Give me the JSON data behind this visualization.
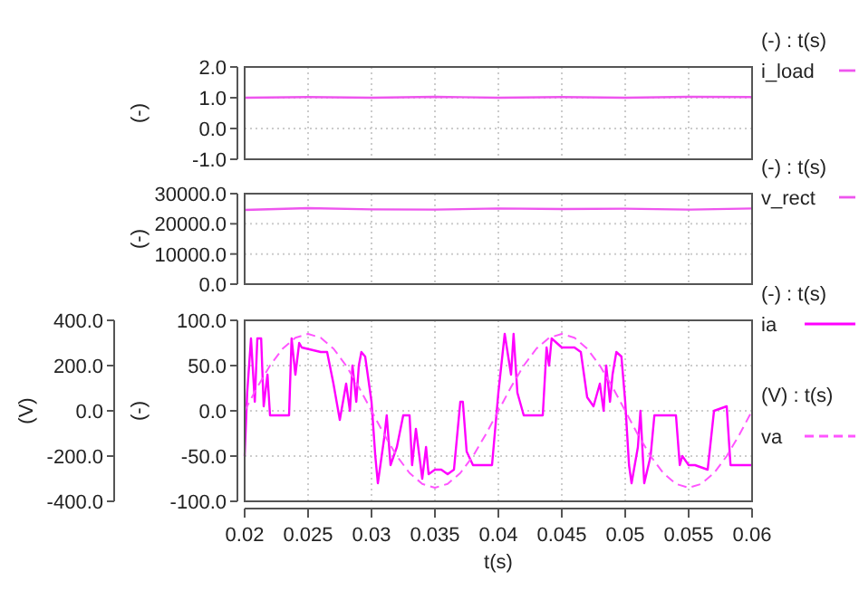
{
  "chart_data": [
    {
      "type": "line",
      "ylabel": "(-)",
      "legend_title": "(-) : t(s)",
      "legend": "right",
      "grid": true,
      "tick_labels": "y",
      "xlim": [
        0.02,
        0.06
      ],
      "xticks": [
        0.02,
        0.025,
        0.03,
        0.035,
        0.04,
        0.045,
        0.05,
        0.055,
        0.06
      ],
      "ylim": [
        -1,
        2
      ],
      "yticks": [
        {
          "value": -1,
          "label": "-1.0"
        },
        {
          "value": 0,
          "label": "0.0"
        },
        {
          "value": 1,
          "label": "1.0"
        },
        {
          "value": 2,
          "label": "2.0"
        }
      ],
      "series": [
        {
          "name": "i_load",
          "color": "#ee55ee",
          "x": [
            0.02,
            0.025,
            0.03,
            0.035,
            0.04,
            0.045,
            0.05,
            0.055,
            0.06
          ],
          "values": [
            1.0,
            1.02,
            1.0,
            1.03,
            1.0,
            1.02,
            1.0,
            1.03,
            1.02
          ]
        }
      ]
    },
    {
      "type": "line",
      "ylabel": "(-)",
      "legend_title": "(-) : t(s)",
      "legend": "right",
      "grid": true,
      "tick_labels": "y",
      "xlim": [
        0.02,
        0.06
      ],
      "xticks": [
        0.02,
        0.025,
        0.03,
        0.035,
        0.04,
        0.045,
        0.05,
        0.055,
        0.06
      ],
      "ylim": [
        0,
        30000
      ],
      "yticks": [
        {
          "value": 0,
          "label": "0.0"
        },
        {
          "value": 10000,
          "label": "10000.0"
        },
        {
          "value": 20000,
          "label": "20000.0"
        },
        {
          "value": 30000,
          "label": "30000.0"
        }
      ],
      "series": [
        {
          "name": "v_rect",
          "color": "#ee55ee",
          "x": [
            0.02,
            0.025,
            0.03,
            0.035,
            0.04,
            0.045,
            0.05,
            0.055,
            0.06
          ],
          "values": [
            24600,
            25200,
            24800,
            24700,
            25100,
            24900,
            25000,
            24700,
            25100
          ]
        }
      ]
    },
    {
      "type": "line",
      "xlabel": "t(s)",
      "ylabel": "(-)",
      "y2label": "(V)",
      "legend_title": "(-) : t(s)",
      "legend": "right",
      "grid": true,
      "annotations": [
        "(V) : t(s)"
      ],
      "xlim": [
        0.02,
        0.06
      ],
      "xticks": [
        0.02,
        0.025,
        0.03,
        0.035,
        0.04,
        0.045,
        0.05,
        0.055,
        0.06
      ],
      "ylim": [
        -100,
        100
      ],
      "yticks": [
        {
          "value": -100,
          "label": "-100.0"
        },
        {
          "value": -50,
          "label": "-50.0"
        },
        {
          "value": 0,
          "label": "0.0"
        },
        {
          "value": 50,
          "label": "50.0"
        },
        {
          "value": 100,
          "label": "100.0"
        }
      ],
      "y2lim": [
        -400,
        400
      ],
      "y2ticks": [
        {
          "value": -400,
          "label": "-400.0"
        },
        {
          "value": -200,
          "label": "-200.0"
        },
        {
          "value": 0,
          "label": "0.0"
        },
        {
          "value": 200,
          "label": "200.0"
        },
        {
          "value": 400,
          "label": "400.0"
        }
      ],
      "series": [
        {
          "name": "ia",
          "color": "#ff00ff",
          "x": [
            0.02,
            0.0202,
            0.0205,
            0.0208,
            0.021,
            0.0213,
            0.0215,
            0.0218,
            0.022,
            0.0235,
            0.0237,
            0.024,
            0.0243,
            0.0245,
            0.026,
            0.0265,
            0.027,
            0.0275,
            0.028,
            0.0283,
            0.0285,
            0.0288,
            0.029,
            0.0292,
            0.0295,
            0.03,
            0.0303,
            0.0305,
            0.031,
            0.0312,
            0.0315,
            0.032,
            0.0325,
            0.033,
            0.0332,
            0.0335,
            0.034,
            0.0343,
            0.0345,
            0.035,
            0.0355,
            0.036,
            0.0365,
            0.037,
            0.0372,
            0.0375,
            0.038,
            0.0395,
            0.04,
            0.0405,
            0.041,
            0.0412,
            0.0415,
            0.042,
            0.0435,
            0.0438,
            0.044,
            0.0442,
            0.045,
            0.046,
            0.0465,
            0.047,
            0.0475,
            0.048,
            0.0483,
            0.0485,
            0.0488,
            0.049,
            0.0493,
            0.0497,
            0.05,
            0.0503,
            0.0505,
            0.051,
            0.0512,
            0.0515,
            0.052,
            0.0523,
            0.054,
            0.0543,
            0.0545,
            0.055,
            0.0555,
            0.0565,
            0.057,
            0.058,
            0.0583,
            0.06
          ],
          "values": [
            -50,
            20,
            80,
            10,
            80,
            80,
            5,
            40,
            -5,
            -5,
            80,
            40,
            75,
            70,
            65,
            65,
            30,
            -10,
            30,
            0,
            50,
            10,
            50,
            65,
            60,
            10,
            -50,
            -80,
            -30,
            -5,
            -60,
            -40,
            -5,
            -5,
            -60,
            -20,
            -75,
            -40,
            -70,
            -65,
            -65,
            -70,
            -65,
            10,
            10,
            -45,
            -60,
            -60,
            20,
            85,
            40,
            85,
            20,
            -5,
            -5,
            70,
            50,
            80,
            70,
            70,
            65,
            15,
            5,
            30,
            0,
            50,
            10,
            40,
            65,
            60,
            10,
            -60,
            -80,
            -40,
            0,
            -80,
            -50,
            -5,
            -5,
            -60,
            -50,
            -60,
            -60,
            -65,
            0,
            5,
            -60,
            -60
          ]
        },
        {
          "name": "va",
          "color": "#ff55ff",
          "axis": "y2",
          "line_style": "dashed",
          "x": [
            0.02,
            0.021,
            0.022,
            0.023,
            0.024,
            0.025,
            0.026,
            0.027,
            0.028,
            0.029,
            0.03,
            0.031,
            0.032,
            0.033,
            0.034,
            0.035,
            0.036,
            0.037,
            0.038,
            0.039,
            0.04,
            0.041,
            0.042,
            0.043,
            0.044,
            0.045,
            0.046,
            0.047,
            0.048,
            0.049,
            0.05,
            0.051,
            0.052,
            0.053,
            0.054,
            0.055,
            0.056,
            0.057,
            0.058,
            0.059,
            0.06
          ],
          "values": [
            0,
            105,
            200,
            275,
            323,
            340,
            323,
            275,
            200,
            105,
            0,
            -105,
            -200,
            -275,
            -323,
            -340,
            -323,
            -275,
            -200,
            -105,
            0,
            105,
            200,
            275,
            323,
            340,
            323,
            275,
            200,
            105,
            0,
            -105,
            -200,
            -275,
            -323,
            -340,
            -323,
            -275,
            -200,
            -105,
            0
          ]
        }
      ]
    }
  ]
}
